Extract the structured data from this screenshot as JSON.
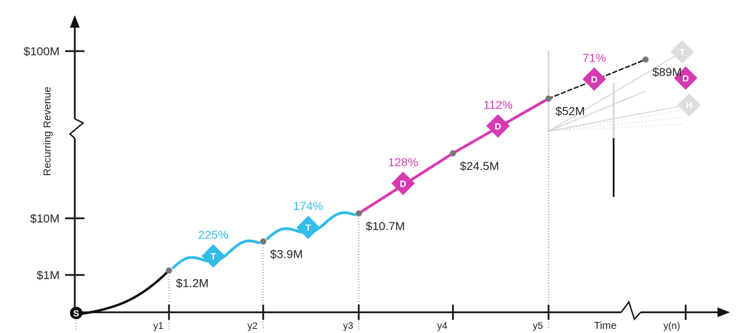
{
  "chart_data": {
    "type": "line",
    "ylabel": "Recurring Revenue",
    "xlabel": "Time",
    "y_scale": "log",
    "y_ticks": [
      {
        "value": 1,
        "label": "$1M"
      },
      {
        "value": 10,
        "label": "$10M"
      },
      {
        "value": 100,
        "label": "$100M"
      }
    ],
    "x_ticks": [
      "y1",
      "y2",
      "y3",
      "y4",
      "y5",
      "y(n)"
    ],
    "start_marker": "S",
    "series": [
      {
        "segment": "start",
        "color": "#111111",
        "points": [
          {
            "x": "y0",
            "value": 0.2
          },
          {
            "x": "y1",
            "value": 1.2
          }
        ]
      },
      {
        "segment": "T",
        "color": "#33bce8",
        "points": [
          {
            "x": "y1",
            "value": 1.2,
            "label": "$1.2M"
          },
          {
            "x": "y2",
            "value": 3.9,
            "label": "$3.9M"
          },
          {
            "x": "y3",
            "value": 10.7,
            "label": "$10.7M"
          }
        ],
        "growth_labels": [
          "225%",
          "174%"
        ]
      },
      {
        "segment": "D",
        "color": "#d63ab0",
        "points": [
          {
            "x": "y3",
            "value": 10.7
          },
          {
            "x": "y4",
            "value": 24.5,
            "label": "$24.5M"
          },
          {
            "x": "y5",
            "value": 52,
            "label": "$52M"
          },
          {
            "x": "y6",
            "value": 89,
            "label": "$89M"
          }
        ],
        "growth_labels": [
          "128%",
          "112%",
          "71%"
        ]
      }
    ],
    "projection_markers": [
      "T",
      "D",
      "H"
    ],
    "colors": {
      "T": "#33bce8",
      "D": "#d63ab0",
      "axis": "#111111",
      "faded": "#d6d6d6"
    }
  }
}
